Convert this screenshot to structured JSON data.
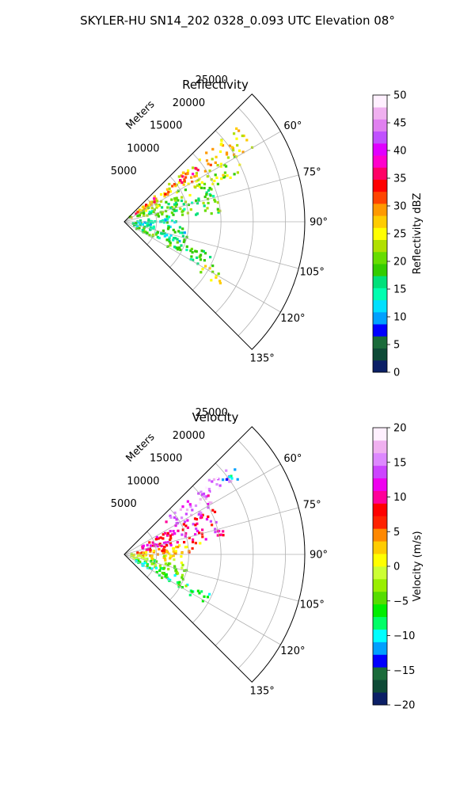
{
  "figure": {
    "title": "SKYLER-HU  SN14_202  0328_0.093 UTC Elevation 08°"
  },
  "chart_data": [
    {
      "type": "heatmap",
      "projection": "polar-sector",
      "title": "Reflectivity",
      "range_label": "Meters",
      "range_ticks": [
        5000,
        10000,
        15000,
        20000,
        25000
      ],
      "range_tick_labels": [
        "5000",
        "10000",
        "15000",
        "20000",
        "25000"
      ],
      "rlim": [
        0,
        28000
      ],
      "angle_range_deg": [
        45,
        135
      ],
      "angle_ticks": [
        60,
        75,
        90,
        105,
        120,
        135
      ],
      "angle_tick_labels": [
        "60°",
        "75°",
        "90°",
        "105°",
        "120°",
        "135°"
      ],
      "grid": true,
      "colorbar": {
        "label": "Reflectivity dBZ",
        "min": 0,
        "max": 50,
        "ticks": [
          0,
          5,
          10,
          15,
          20,
          25,
          30,
          35,
          40,
          45,
          50
        ],
        "tick_labels": [
          "0",
          "5",
          "10",
          "15",
          "20",
          "25",
          "30",
          "35",
          "40",
          "45",
          "50"
        ],
        "colormap": "NWSRef-like",
        "stops": [
          "#0b1f66",
          "#0e4a36",
          "#1a6b3a",
          "#0000ff",
          "#00a0ff",
          "#00e0ff",
          "#00ffb0",
          "#00e07a",
          "#33cc00",
          "#66dd00",
          "#b0e000",
          "#ffff00",
          "#ffcc00",
          "#ff9900",
          "#ff4400",
          "#ff0000",
          "#ff0066",
          "#ff00cc",
          "#e000ff",
          "#c050ff",
          "#e080f0",
          "#f0b0f0",
          "#fff0ff"
        ]
      },
      "echo_regions": [
        {
          "az": [
            50,
            60
          ],
          "range": [
            1000,
            23000
          ],
          "value": 26
        },
        {
          "az": [
            52,
            58
          ],
          "range": [
            2000,
            14000
          ],
          "value": 34
        },
        {
          "az": [
            60,
            68
          ],
          "range": [
            2000,
            20000
          ],
          "value": 22
        },
        {
          "az": [
            68,
            75
          ],
          "range": [
            3000,
            16000
          ],
          "value": 18
        },
        {
          "az": [
            75,
            85
          ],
          "range": [
            5000,
            15000
          ],
          "value": 19
        },
        {
          "az": [
            85,
            95
          ],
          "range": [
            2000,
            9000
          ],
          "value": 14
        },
        {
          "az": [
            95,
            110
          ],
          "range": [
            1000,
            10000
          ],
          "value": 15
        },
        {
          "az": [
            110,
            120
          ],
          "range": [
            2000,
            16000
          ],
          "value": 18
        },
        {
          "az": [
            118,
            124
          ],
          "range": [
            14000,
            18000
          ],
          "value": 24
        }
      ]
    },
    {
      "type": "heatmap",
      "projection": "polar-sector",
      "title": "Velocity",
      "range_label": "Meters",
      "range_ticks": [
        5000,
        10000,
        15000,
        20000,
        25000
      ],
      "range_tick_labels": [
        "5000",
        "10000",
        "15000",
        "20000",
        "25000"
      ],
      "rlim": [
        0,
        28000
      ],
      "angle_range_deg": [
        45,
        135
      ],
      "angle_ticks": [
        60,
        75,
        90,
        105,
        120,
        135
      ],
      "angle_tick_labels": [
        "60°",
        "75°",
        "90°",
        "105°",
        "120°",
        "135°"
      ],
      "grid": true,
      "colorbar": {
        "label": "Velocity (m/s)",
        "min": -20,
        "max": 20,
        "ticks": [
          -20,
          -15,
          -10,
          -5,
          0,
          5,
          10,
          15,
          20
        ],
        "tick_labels": [
          "−20",
          "−15",
          "−10",
          "−5",
          "0",
          "5",
          "10",
          "15",
          "20"
        ],
        "colormap": "Carbone42-like",
        "stops": [
          "#0b1f66",
          "#0e4a36",
          "#1a6b3a",
          "#0000ff",
          "#00a0ff",
          "#00ffff",
          "#00ff66",
          "#00ee00",
          "#55dd00",
          "#99ee00",
          "#ccff33",
          "#ffff00",
          "#ffcc00",
          "#ff8800",
          "#ff2200",
          "#ff0000",
          "#ff0099",
          "#ee00ee",
          "#cc44ff",
          "#dd88ff",
          "#f0b0f0",
          "#fff0ff"
        ]
      },
      "echo_regions": [
        {
          "az": [
            48,
            56
          ],
          "range": [
            14000,
            21000
          ],
          "value": 16
        },
        {
          "az": [
            50,
            62
          ],
          "range": [
            8000,
            16000
          ],
          "value": 14
        },
        {
          "az": [
            62,
            80
          ],
          "range": [
            3000,
            16000
          ],
          "value": 10
        },
        {
          "az": [
            80,
            90
          ],
          "range": [
            2000,
            12000
          ],
          "value": 4
        },
        {
          "az": [
            90,
            100
          ],
          "range": [
            1000,
            9000
          ],
          "value": 1
        },
        {
          "az": [
            100,
            112
          ],
          "range": [
            1000,
            10000
          ],
          "value": -4
        },
        {
          "az": [
            112,
            122
          ],
          "range": [
            2000,
            15000
          ],
          "value": -7
        },
        {
          "az": [
            52,
            58
          ],
          "range": [
            19000,
            22000
          ],
          "value": -11
        }
      ]
    }
  ]
}
